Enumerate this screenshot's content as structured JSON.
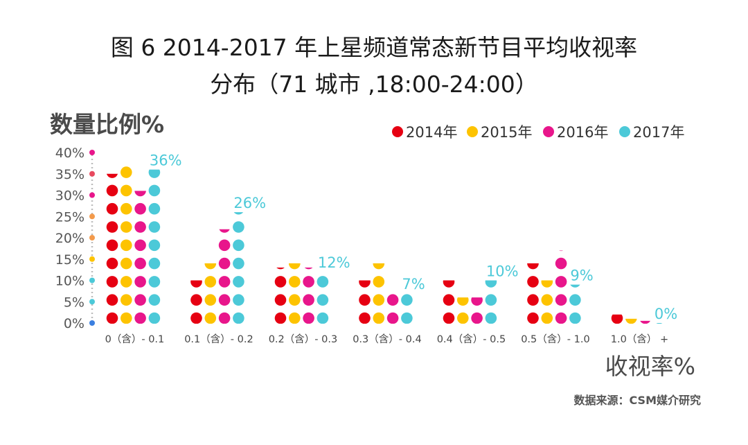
{
  "title_line1": "图 6   2014-2017 年上星频道常态新节目平均收视率",
  "title_line2": "分布（71 城市 ,18:00-24:00）",
  "source": "数据来源：CSM媒介研究",
  "colors": {
    "2014年": "#e60012",
    "2015年": "#fdc300",
    "2016年": "#e8168b",
    "2017年": "#4cc9d8"
  },
  "chart_data": {
    "type": "bar",
    "title": "图 6   2014-2017 年上星频道常态新节目平均收视率分布（71 城市 ,18:00-24:00）",
    "xlabel": "收视率%",
    "ylabel": "数量比例%",
    "ylim": [
      0,
      40
    ],
    "y_ticks": [
      "0%",
      "5%",
      "10%",
      "15%",
      "20%",
      "25%",
      "30%",
      "35%",
      "40%"
    ],
    "legend_position": "top-right",
    "categories": [
      "0（含）- 0.1",
      "0.1（含）- 0.2",
      "0.2（含）- 0.3",
      "0.3（含）- 0.4",
      "0.4（含）- 0.5",
      "0.5（含）- 1.0",
      "1.0（含） +"
    ],
    "series": [
      {
        "name": "2014年",
        "values": [
          35,
          10,
          13,
          10,
          10,
          14,
          2
        ]
      },
      {
        "name": "2015年",
        "values": [
          37,
          14,
          14,
          14,
          6,
          10,
          1
        ]
      },
      {
        "name": "2016年",
        "values": [
          31,
          22,
          13,
          8,
          6,
          17,
          0.5
        ]
      },
      {
        "name": "2017年",
        "values": [
          36,
          26,
          12,
          7,
          10,
          9,
          0
        ]
      }
    ],
    "annotations": [
      "36%",
      "26%",
      "12%",
      "7%",
      "10%",
      "9%",
      "0%"
    ]
  }
}
